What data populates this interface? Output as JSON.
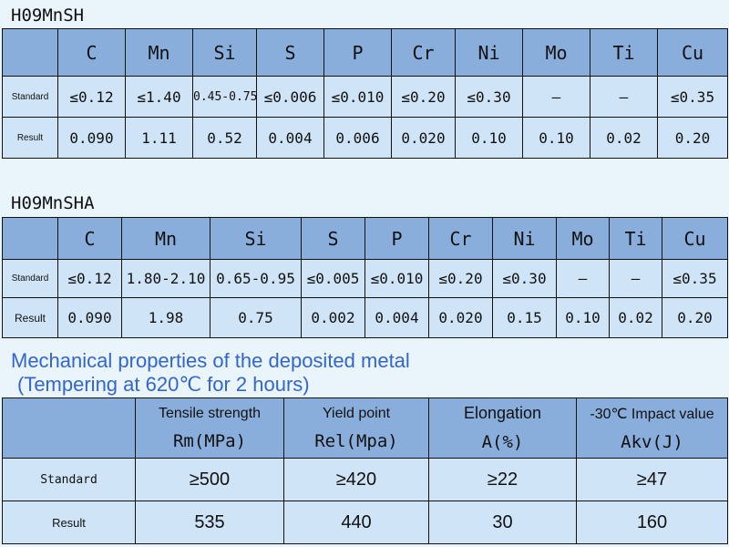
{
  "table1": {
    "title": "H09MnSH",
    "elements": [
      "C",
      "Mn",
      "Si",
      "S",
      "P",
      "Cr",
      "Ni",
      "Mo",
      "Ti",
      "Cu"
    ],
    "standard_label": "Standard",
    "result_label": "Result",
    "standard": [
      "≤0.12",
      "≤1.40",
      "0.45-0.75",
      "≤0.006",
      "≤0.010",
      "≤0.20",
      "≤0.30",
      "—",
      "—",
      "≤0.35"
    ],
    "result": [
      "0.090",
      "1.11",
      "0.52",
      "0.004",
      "0.006",
      "0.020",
      "0.10",
      "0.10",
      "0.02",
      "0.20"
    ]
  },
  "table2": {
    "title": "H09MnSHA",
    "elements": [
      "C",
      "Mn",
      "Si",
      "S",
      "P",
      "Cr",
      "Ni",
      "Mo",
      "Ti",
      "Cu"
    ],
    "standard_label": "Standard",
    "result_label": "Result",
    "standard": [
      "≤0.12",
      "1.80-2.10",
      "0.65-0.95",
      "≤0.005",
      "≤0.010",
      "≤0.20",
      "≤0.30",
      "—",
      "—",
      "≤0.35"
    ],
    "result": [
      "0.090",
      "1.98",
      "0.75",
      "0.002",
      "0.004",
      "0.020",
      "0.15",
      "0.10",
      "0.02",
      "0.20"
    ]
  },
  "mechanical": {
    "title_line1": "Mechanical properties of the deposited metal",
    "title_line2": "(Tempering at 620℃ for 2 hours)",
    "headers": [
      {
        "top": "Tensile strength",
        "bottom": "Rm(MPa)"
      },
      {
        "top": "Yield point",
        "bottom": "Rel(Mpa)"
      },
      {
        "top": "Elongation",
        "bottom": "A(%)"
      },
      {
        "top": "-30℃ Impact value",
        "bottom": "Akv(J)"
      }
    ],
    "standard_label": "Standard",
    "result_label": "Result",
    "standard": [
      "≥500",
      "≥420",
      "≥22",
      "≥47"
    ],
    "result": [
      "535",
      "440",
      "30",
      "160"
    ]
  }
}
